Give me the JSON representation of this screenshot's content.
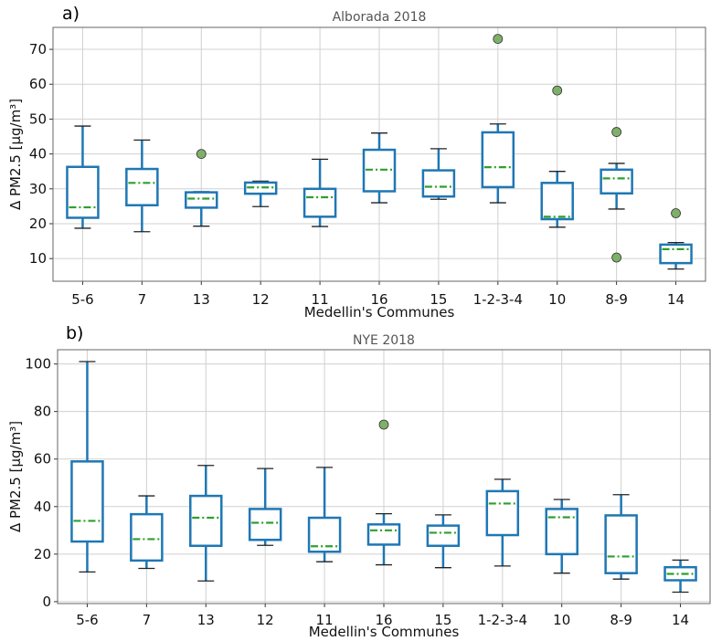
{
  "colors": {
    "box": "#1f77b4",
    "median": "#2ca02c",
    "flier": "#7fb069",
    "grid": "#d0d0d0"
  },
  "chart_data": [
    {
      "type": "box",
      "panel": "a)",
      "title": "Alborada 2018",
      "xlabel": "Medellin's Communes",
      "ylabel": "Δ PM2.5  [μg/m³]",
      "ylim": [
        3.5,
        76.3
      ],
      "yticks": [
        10,
        20,
        30,
        40,
        50,
        60,
        70
      ],
      "grid": true,
      "categories": [
        "5-6",
        "7",
        "13",
        "12",
        "11",
        "16",
        "15",
        "1-2-3-4",
        "10",
        "8-9",
        "14"
      ],
      "boxes": [
        {
          "whislo": 18.7,
          "q1": 21.7,
          "med": 24.7,
          "q3": 36.3,
          "whishi": 48.0,
          "fliers": []
        },
        {
          "whislo": 17.7,
          "q1": 25.3,
          "med": 31.7,
          "q3": 35.7,
          "whishi": 44.0,
          "fliers": []
        },
        {
          "whislo": 19.3,
          "q1": 24.6,
          "med": 27.2,
          "q3": 29.0,
          "whishi": 29.2,
          "fliers": [
            40.0
          ]
        },
        {
          "whislo": 24.9,
          "q1": 28.6,
          "med": 30.4,
          "q3": 31.8,
          "whishi": 32.2,
          "fliers": []
        },
        {
          "whislo": 19.2,
          "q1": 22.0,
          "med": 27.6,
          "q3": 30.0,
          "whishi": 38.5,
          "fliers": []
        },
        {
          "whislo": 26.0,
          "q1": 29.3,
          "med": 35.5,
          "q3": 41.2,
          "whishi": 46.0,
          "fliers": []
        },
        {
          "whislo": 27.0,
          "q1": 27.8,
          "med": 30.6,
          "q3": 35.3,
          "whishi": 41.5,
          "fliers": []
        },
        {
          "whislo": 26.0,
          "q1": 30.5,
          "med": 36.2,
          "q3": 46.2,
          "whishi": 48.6,
          "fliers": [
            73.0
          ]
        },
        {
          "whislo": 19.0,
          "q1": 21.3,
          "med": 22.0,
          "q3": 31.7,
          "whishi": 35.0,
          "fliers": [
            58.2
          ]
        },
        {
          "whislo": 24.2,
          "q1": 28.7,
          "med": 33.0,
          "q3": 35.5,
          "whishi": 37.3,
          "fliers": [
            46.3,
            10.3
          ]
        },
        {
          "whislo": 7.0,
          "q1": 8.7,
          "med": 12.7,
          "q3": 14.0,
          "whishi": 14.6,
          "fliers": [
            23.0
          ]
        }
      ]
    },
    {
      "type": "box",
      "panel": "b)",
      "title": "NYE 2018",
      "xlabel": "Medellin's Communes",
      "ylabel": "Δ PM2.5  [μg/m³]",
      "ylim": [
        -0.8,
        106
      ],
      "yticks": [
        0,
        20,
        40,
        60,
        80,
        100
      ],
      "grid": true,
      "categories": [
        "5-6",
        "7",
        "13",
        "12",
        "11",
        "16",
        "15",
        "1-2-3-4",
        "10",
        "8-9",
        "14"
      ],
      "boxes": [
        {
          "whislo": 12.5,
          "q1": 25.3,
          "med": 34.0,
          "q3": 59.0,
          "whishi": 101.0,
          "fliers": []
        },
        {
          "whislo": 14.0,
          "q1": 17.3,
          "med": 26.3,
          "q3": 36.8,
          "whishi": 44.5,
          "fliers": []
        },
        {
          "whislo": 8.7,
          "q1": 23.5,
          "med": 35.3,
          "q3": 44.5,
          "whishi": 57.3,
          "fliers": []
        },
        {
          "whislo": 23.7,
          "q1": 26.0,
          "med": 33.2,
          "q3": 39.0,
          "whishi": 56.0,
          "fliers": []
        },
        {
          "whislo": 16.8,
          "q1": 21.0,
          "med": 23.3,
          "q3": 35.3,
          "whishi": 56.5,
          "fliers": []
        },
        {
          "whislo": 15.5,
          "q1": 24.0,
          "med": 30.0,
          "q3": 32.5,
          "whishi": 37.0,
          "fliers": [
            74.5
          ]
        },
        {
          "whislo": 14.3,
          "q1": 23.5,
          "med": 29.0,
          "q3": 32.0,
          "whishi": 36.5,
          "fliers": []
        },
        {
          "whislo": 15.0,
          "q1": 28.0,
          "med": 41.3,
          "q3": 46.5,
          "whishi": 51.5,
          "fliers": []
        },
        {
          "whislo": 12.0,
          "q1": 20.0,
          "med": 35.5,
          "q3": 39.0,
          "whishi": 43.0,
          "fliers": []
        },
        {
          "whislo": 9.5,
          "q1": 12.0,
          "med": 19.0,
          "q3": 36.3,
          "whishi": 45.0,
          "fliers": []
        },
        {
          "whislo": 4.0,
          "q1": 9.0,
          "med": 11.7,
          "q3": 14.5,
          "whishi": 17.5,
          "fliers": []
        }
      ]
    }
  ]
}
